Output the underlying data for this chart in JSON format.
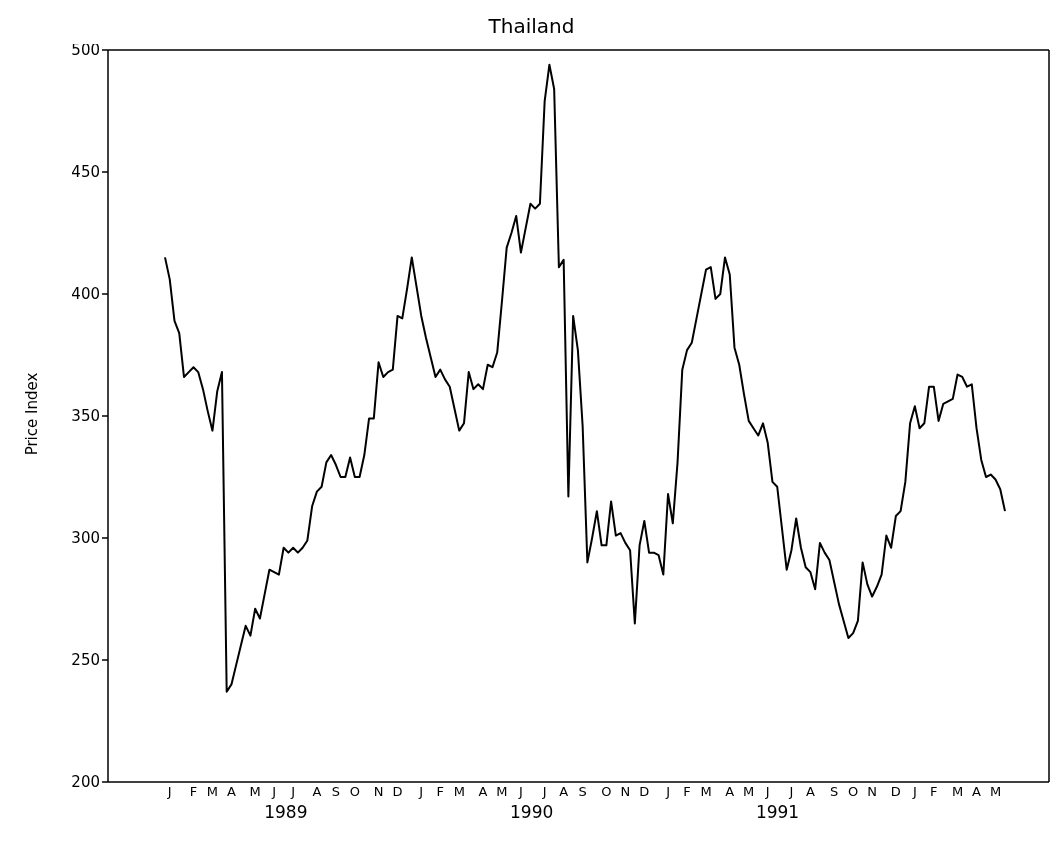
{
  "chart_data": {
    "type": "line",
    "title": "Thailand",
    "ylabel": "Price Index",
    "marker": "none",
    "line_style": "solid",
    "ylim": [
      200,
      500
    ],
    "yticks": [
      200,
      250,
      300,
      350,
      400,
      450,
      500
    ],
    "categories": [
      null,
      "J",
      null,
      null,
      null,
      null,
      "F",
      null,
      null,
      null,
      "M",
      null,
      null,
      null,
      "A",
      null,
      null,
      null,
      null,
      "M",
      null,
      null,
      null,
      "J",
      null,
      null,
      null,
      "J",
      null,
      null,
      null,
      null,
      "A",
      null,
      null,
      null,
      "S",
      null,
      null,
      null,
      "O",
      null,
      null,
      null,
      null,
      "N",
      null,
      null,
      null,
      "D",
      null,
      null,
      null,
      null,
      "J",
      null,
      null,
      null,
      "F",
      null,
      null,
      null,
      "M",
      null,
      null,
      null,
      null,
      "A",
      null,
      null,
      null,
      "M",
      null,
      null,
      null,
      "J",
      null,
      null,
      null,
      null,
      "J",
      null,
      null,
      null,
      "A",
      null,
      null,
      null,
      "S",
      null,
      null,
      null,
      null,
      "O",
      null,
      null,
      null,
      "N",
      null,
      null,
      null,
      "D",
      null,
      null,
      null,
      null,
      "J",
      null,
      null,
      null,
      "F",
      null,
      null,
      null,
      "M",
      null,
      null,
      null,
      null,
      "A",
      null,
      null,
      null,
      "M",
      null,
      null,
      null,
      "J",
      null,
      null,
      null,
      null,
      "J",
      null,
      null,
      null,
      "A",
      null,
      null,
      null,
      null,
      "S",
      null,
      null,
      null,
      "O",
      null,
      null,
      null,
      "N",
      null,
      null,
      null,
      null,
      "D",
      null,
      null,
      null,
      "J",
      null,
      null,
      null,
      "F",
      null,
      null,
      null,
      null,
      "M",
      null,
      null,
      null,
      "A",
      null,
      null,
      null,
      "M",
      null,
      null
    ],
    "x2lim": [
      "1988-10-10",
      "1992-08-07"
    ],
    "x2ticks": [
      {
        "value": "1989-07-01",
        "label": "1989"
      },
      {
        "value": "1990-07-01",
        "label": "1990"
      },
      {
        "value": "1991-07-01",
        "label": "1991"
      }
    ],
    "series": [
      {
        "color": "#000000",
        "values": [
          415,
          406,
          389,
          384,
          366,
          368,
          370,
          368,
          361,
          352,
          344,
          360,
          368,
          237,
          240,
          248,
          256,
          264,
          260,
          271,
          267,
          277,
          287,
          286,
          285,
          296,
          294,
          296,
          294,
          296,
          299,
          313,
          319,
          321,
          331,
          334,
          330,
          325,
          325,
          333,
          325,
          325,
          334,
          349,
          349,
          372,
          366,
          368,
          369,
          391,
          390,
          402,
          415,
          403,
          391,
          382,
          374,
          366,
          369,
          365,
          362,
          353,
          344,
          347,
          368,
          361,
          363,
          361,
          371,
          370,
          376,
          397,
          419,
          425,
          432,
          417,
          427,
          437,
          435,
          437,
          479,
          494,
          484,
          411,
          414,
          317,
          391,
          377,
          346,
          290,
          300,
          311,
          297,
          297,
          315,
          301,
          302,
          298,
          295,
          265,
          297,
          307,
          294,
          294,
          293,
          285,
          318,
          306,
          331,
          369,
          377,
          380,
          390,
          400,
          410,
          411,
          398,
          400,
          415,
          408,
          378,
          371,
          359,
          348,
          345,
          342,
          347,
          339,
          323,
          321,
          304,
          287,
          295,
          308,
          296,
          288,
          286,
          279,
          298,
          294,
          291,
          282,
          273,
          266,
          259,
          261,
          266,
          290,
          281,
          276,
          280,
          285,
          301,
          296,
          309,
          311,
          323,
          347,
          354,
          345,
          347,
          362,
          362,
          348,
          355,
          356,
          357,
          367,
          366,
          362,
          363,
          345,
          332,
          325,
          326,
          324,
          320,
          311
        ]
      }
    ]
  }
}
